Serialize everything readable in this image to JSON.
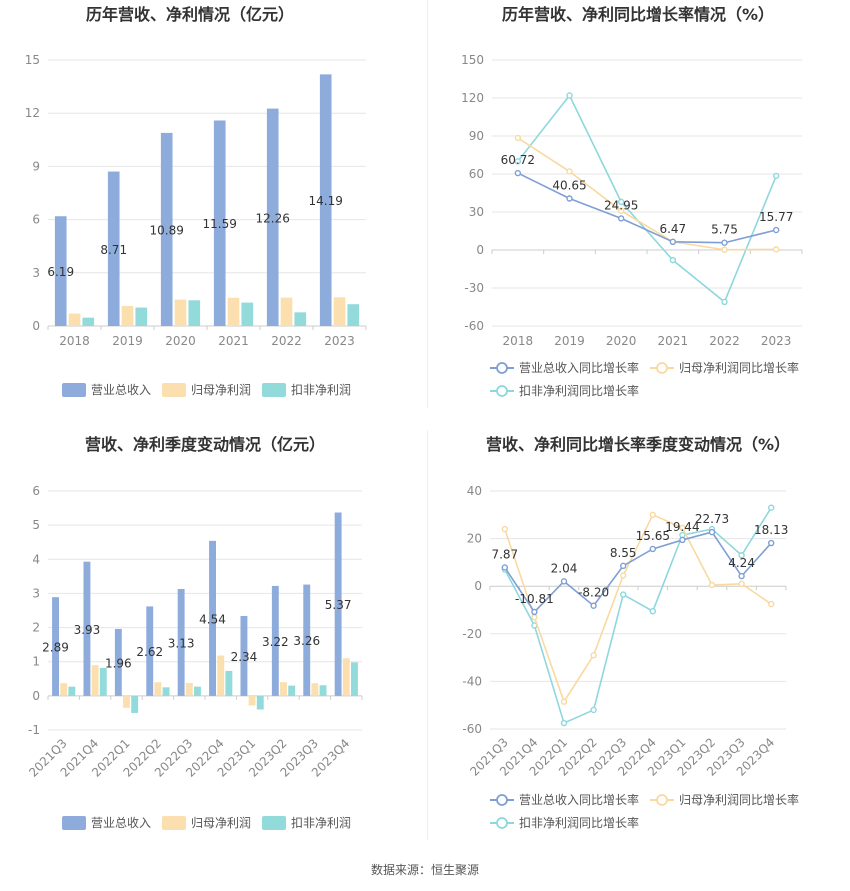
{
  "source_label": "数据来源：恒生聚源",
  "colors": {
    "revenue": "#8EACDB",
    "net_profit": "#FBDFAE",
    "deducted_profit": "#93DADB",
    "revenue_line": "#7F9FD4",
    "net_line": "#FAD9A0",
    "deducted_line": "#8ED8DD",
    "grid": "#E6E6E6",
    "axis_text": "#888888",
    "title_text": "#333333"
  },
  "chart_data": [
    {
      "type": "bar",
      "title": "历年营收、净利情况（亿元）",
      "categories": [
        "2018",
        "2019",
        "2020",
        "2021",
        "2022",
        "2023"
      ],
      "ylim": [
        0,
        15
      ],
      "yticks": [
        0,
        3,
        6,
        9,
        12,
        15
      ],
      "grid": true,
      "legend_position": "bottom",
      "series": [
        {
          "name": "营业总收入",
          "color": "#8EACDB",
          "values": [
            6.19,
            8.71,
            10.89,
            11.59,
            12.26,
            14.19
          ],
          "labels": [
            "6.19",
            "8.71",
            "10.89",
            "11.59",
            "12.26",
            "14.19"
          ]
        },
        {
          "name": "归母净利润",
          "color": "#FBDFAE",
          "values": [
            0.7,
            1.13,
            1.49,
            1.59,
            1.6,
            1.62
          ]
        },
        {
          "name": "扣非净利润",
          "color": "#93DADB",
          "values": [
            0.47,
            1.04,
            1.45,
            1.32,
            0.77,
            1.23
          ]
        }
      ]
    },
    {
      "type": "line",
      "title": "历年营收、净利同比增长率情况（%）",
      "categories": [
        "2018",
        "2019",
        "2020",
        "2021",
        "2022",
        "2023"
      ],
      "ylim": [
        -60,
        150
      ],
      "yticks": [
        -60,
        -30,
        0,
        30,
        60,
        90,
        120,
        150
      ],
      "grid": true,
      "legend_position": "bottom",
      "series": [
        {
          "name": "营业总收入同比增长率",
          "color": "#7F9FD4",
          "values": [
            60.72,
            40.65,
            24.95,
            6.47,
            5.75,
            15.77
          ],
          "labels": [
            "60.72",
            "40.65",
            "24.95",
            "6.47",
            "5.75",
            "15.77"
          ]
        },
        {
          "name": "归母净利润同比增长率",
          "color": "#FAD9A0",
          "values": [
            88.5,
            62.0,
            31.0,
            6.5,
            0.2,
            0.5
          ]
        },
        {
          "name": "扣非净利润同比增长率",
          "color": "#8ED8DD",
          "values": [
            70.0,
            122.0,
            38.0,
            -8.0,
            -41.0,
            58.5
          ]
        }
      ]
    },
    {
      "type": "bar",
      "title": "营收、净利季度变动情况（亿元）",
      "categories": [
        "2021Q3",
        "2021Q4",
        "2022Q1",
        "2022Q2",
        "2022Q3",
        "2022Q4",
        "2023Q1",
        "2023Q2",
        "2023Q3",
        "2023Q4"
      ],
      "ylim": [
        -1,
        6
      ],
      "yticks": [
        -1,
        0,
        1,
        2,
        3,
        4,
        5,
        6
      ],
      "grid": true,
      "legend_position": "bottom",
      "series": [
        {
          "name": "营业总收入",
          "color": "#8EACDB",
          "values": [
            2.89,
            3.93,
            1.96,
            2.62,
            3.13,
            4.54,
            2.34,
            3.22,
            3.26,
            5.37
          ],
          "labels": [
            "2.89",
            "3.93",
            "1.96",
            "2.62",
            "3.13",
            "4.54",
            "2.34",
            "3.22",
            "3.26",
            "5.37"
          ]
        },
        {
          "name": "归母净利润",
          "color": "#FBDFAE",
          "values": [
            0.37,
            0.9,
            -0.35,
            0.4,
            0.38,
            1.18,
            -0.28,
            0.4,
            0.37,
            1.1
          ]
        },
        {
          "name": "扣非净利润",
          "color": "#93DADB",
          "values": [
            0.27,
            0.82,
            -0.5,
            0.25,
            0.27,
            0.73,
            -0.4,
            0.3,
            0.31,
            0.98
          ]
        }
      ]
    },
    {
      "type": "line",
      "title": "营收、净利同比增长率季度变动情况（%）",
      "categories": [
        "2021Q3",
        "2021Q4",
        "2022Q1",
        "2022Q2",
        "2022Q3",
        "2022Q4",
        "2023Q1",
        "2023Q2",
        "2023Q3",
        "2023Q4"
      ],
      "ylim": [
        -60,
        40
      ],
      "yticks": [
        -60,
        -40,
        -20,
        0,
        20,
        40
      ],
      "grid": true,
      "legend_position": "bottom",
      "series": [
        {
          "name": "营业总收入同比增长率",
          "color": "#7F9FD4",
          "values": [
            7.87,
            -10.81,
            2.04,
            -8.2,
            8.55,
            15.65,
            19.44,
            22.73,
            4.24,
            18.13
          ],
          "labels": [
            "7.87",
            "-10.81",
            "2.04",
            "-8.20",
            "8.55",
            "15.65",
            "19.44",
            "22.73",
            "4.24",
            "18.13"
          ]
        },
        {
          "name": "归母净利润同比增长率",
          "color": "#FAD9A0",
          "values": [
            24.0,
            -13.0,
            -48.5,
            -29.0,
            4.5,
            30.0,
            24.5,
            0.5,
            1.0,
            -7.5
          ]
        },
        {
          "name": "扣非净利润同比增长率",
          "color": "#8ED8DD",
          "values": [
            7.0,
            -16.5,
            -57.5,
            -52.0,
            -3.5,
            -10.5,
            21.5,
            24.0,
            13.0,
            33.0
          ]
        }
      ]
    }
  ]
}
